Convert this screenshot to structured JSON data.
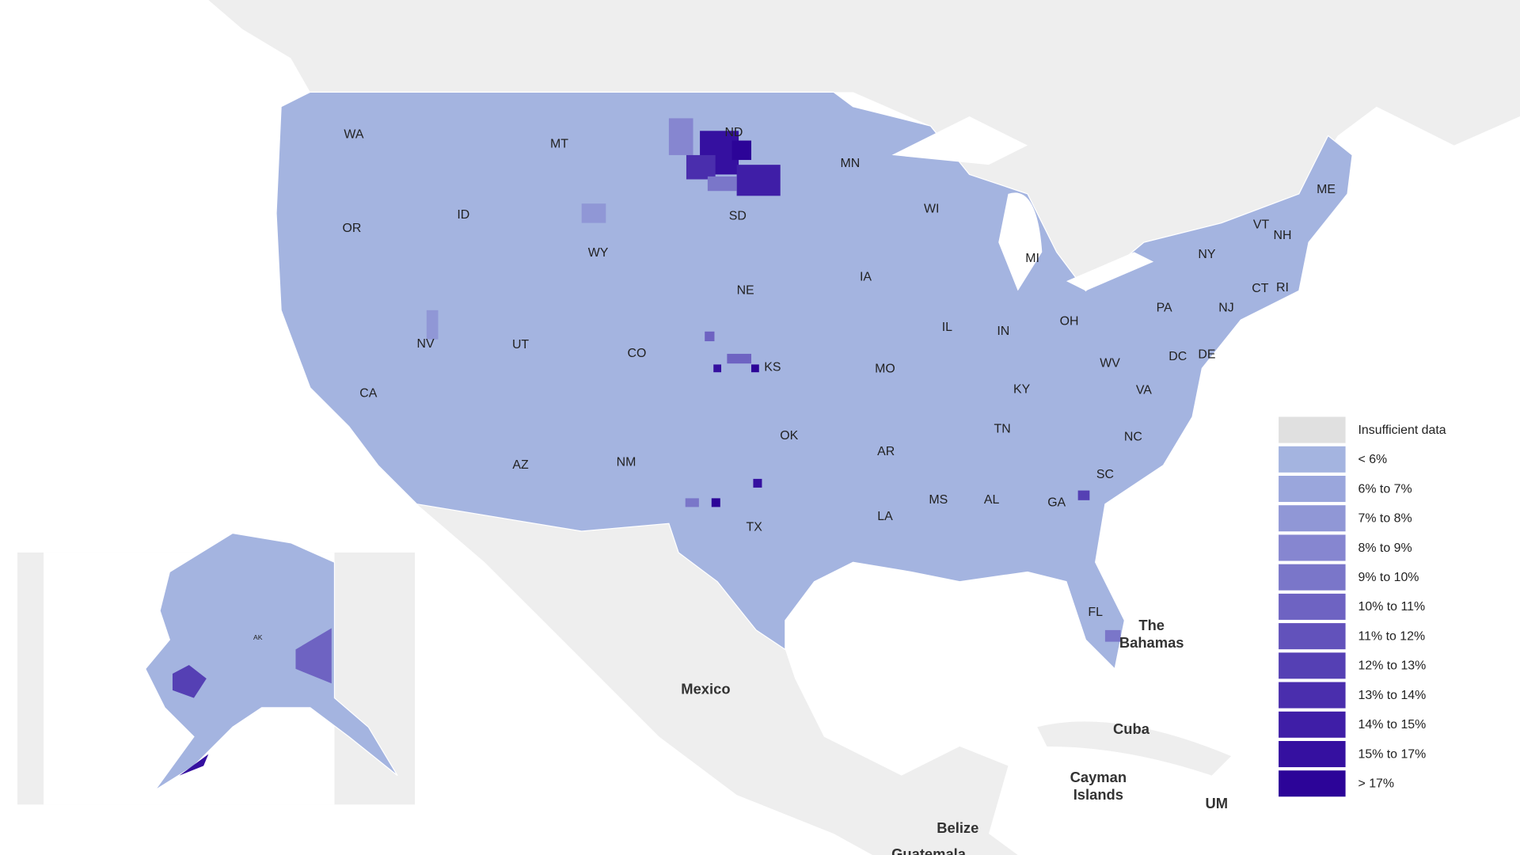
{
  "map": {
    "state_labels": [
      "WA",
      "MT",
      "ND",
      "MN",
      "OR",
      "ID",
      "SD",
      "WI",
      "ME",
      "VT",
      "NH",
      "WY",
      "NY",
      "MI",
      "IA",
      "NE",
      "CT",
      "RI",
      "PA",
      "NJ",
      "NV",
      "UT",
      "IL",
      "IN",
      "OH",
      "CO",
      "KS",
      "MO",
      "DC",
      "DE",
      "WV",
      "CA",
      "KY",
      "VA",
      "OK",
      "TN",
      "NC",
      "AR",
      "AZ",
      "NM",
      "SC",
      "MS",
      "AL",
      "GA",
      "LA",
      "TX",
      "FL"
    ],
    "inset_label": "AK",
    "place_labels": [
      {
        "lines": [
          "Mexico"
        ]
      },
      {
        "lines": [
          "The",
          "Bahamas"
        ]
      },
      {
        "lines": [
          "Cuba"
        ]
      },
      {
        "lines": [
          "Cayman",
          "Islands"
        ]
      },
      {
        "lines": [
          "Belize"
        ]
      },
      {
        "lines": [
          "Guatemala"
        ]
      },
      {
        "lines": [
          "UM"
        ]
      }
    ],
    "legend": [
      {
        "label": "Insufficient data",
        "color": "#e0e0e0"
      },
      {
        "label": "< 6%",
        "color": "#a4b4e0"
      },
      {
        "label": "6% to 7%",
        "color": "#9aa6dc"
      },
      {
        "label": "7% to 8%",
        "color": "#9097d6"
      },
      {
        "label": "8% to 9%",
        "color": "#8686d0"
      },
      {
        "label": "9% to 10%",
        "color": "#7a76c9"
      },
      {
        "label": "10% to 11%",
        "color": "#6e63c2"
      },
      {
        "label": "11% to 12%",
        "color": "#6252bb"
      },
      {
        "label": "12% to 13%",
        "color": "#5540b4"
      },
      {
        "label": "13% to 14%",
        "color": "#4a2ead"
      },
      {
        "label": "14% to 15%",
        "color": "#3f1ea7"
      },
      {
        "label": "15% to 17%",
        "color": "#3510a0"
      },
      {
        "label": "> 17%",
        "color": "#2c0498"
      }
    ]
  }
}
